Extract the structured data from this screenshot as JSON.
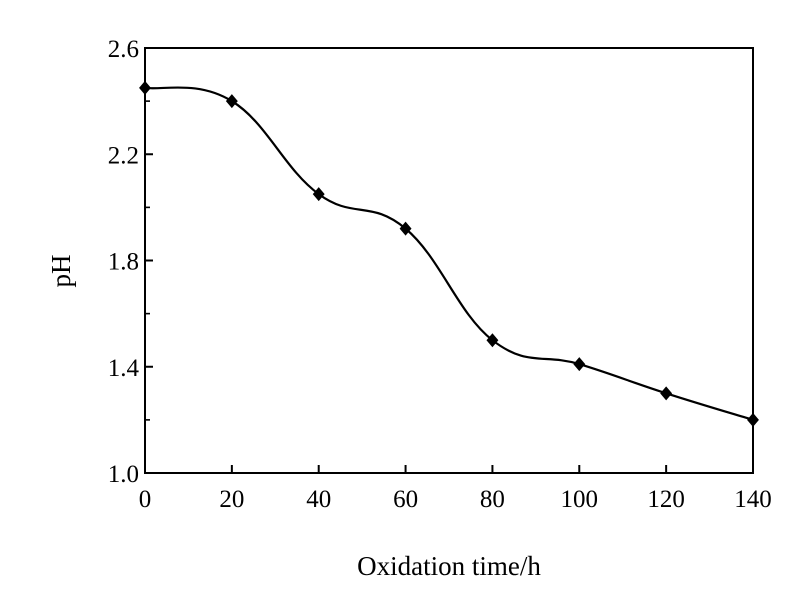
{
  "chart_data": {
    "type": "line",
    "title": "",
    "xlabel": "Oxidation time/h",
    "ylabel": "pH",
    "xlim": [
      0,
      140
    ],
    "ylim": [
      1.0,
      2.6
    ],
    "xticks": [
      0,
      20,
      40,
      60,
      80,
      100,
      120,
      140
    ],
    "xtick_labels": [
      "0",
      "20",
      "40",
      "60",
      "80",
      "100",
      "120",
      "140"
    ],
    "yticks": [
      1.0,
      1.4,
      1.8,
      2.2,
      2.6
    ],
    "ytick_labels": [
      "1.0",
      "1.4",
      "1.8",
      "2.2",
      "2.6"
    ],
    "grid": false,
    "legend": false,
    "marker": "diamond",
    "line_style": "smooth",
    "color": "#000000",
    "series": [
      {
        "x": [
          0,
          20,
          40,
          60,
          80,
          100,
          120,
          140
        ],
        "values": [
          2.45,
          2.4,
          2.05,
          1.92,
          1.5,
          1.41,
          1.3,
          1.2
        ]
      }
    ]
  }
}
